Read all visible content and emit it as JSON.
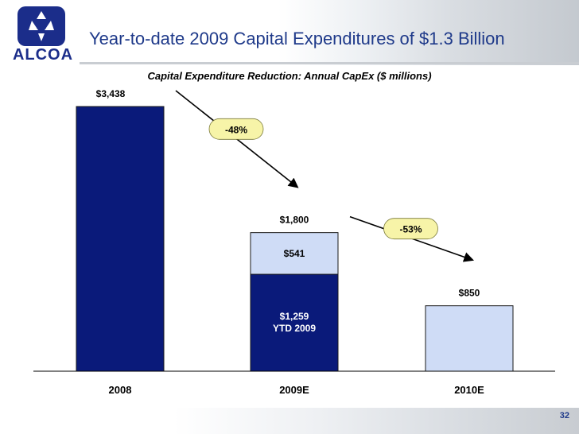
{
  "header": {
    "logo_text": "ALCOA",
    "title": "Year-to-date 2009 Capital Expenditures of $1.3 Billion"
  },
  "colors": {
    "dark_bar": "#0a1a7a",
    "light_bar": "#cfdcf6",
    "callout": "#f7f4a8"
  },
  "chart_data": {
    "type": "bar",
    "title": "Capital Expenditure Reduction: Annual CapEx ($ millions)",
    "categories": [
      "2008",
      "2009E",
      "2010E"
    ],
    "series": [
      {
        "values": [
          3438,
          1259,
          0
        ],
        "labels": [
          "$3,438",
          "$1,259",
          ""
        ],
        "sublabels": [
          "",
          "YTD 2009",
          ""
        ],
        "color": "dark"
      },
      {
        "values": [
          0,
          541,
          850
        ],
        "labels": [
          "",
          "$541",
          ""
        ],
        "color": "light"
      }
    ],
    "totals": [
      {
        "category": "2009E",
        "value": 1800,
        "label": "$1,800"
      },
      {
        "category": "2010E",
        "value": 850,
        "label": "$850"
      }
    ],
    "ylim": [
      0,
      3500
    ],
    "grid": false,
    "annotations": [
      {
        "text": "-48%",
        "from": "2008",
        "to": "2009E"
      },
      {
        "text": "-53%",
        "from": "2009E",
        "to": "2010E"
      }
    ]
  },
  "footer": {
    "page_number": "32"
  }
}
